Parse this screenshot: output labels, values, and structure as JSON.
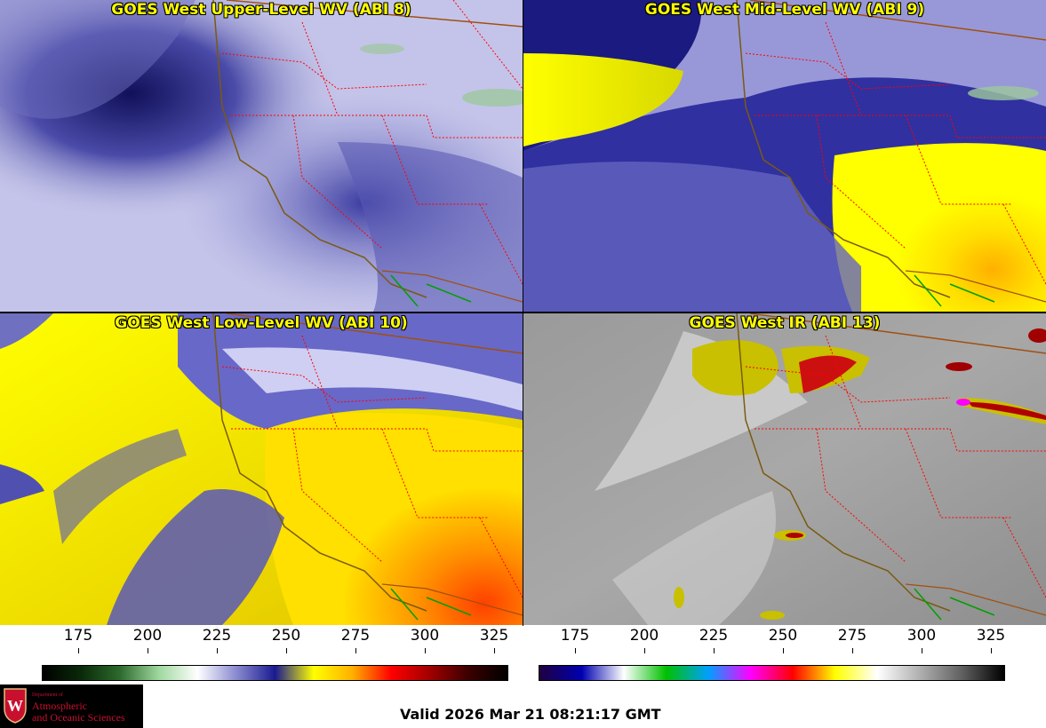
{
  "panels": [
    {
      "id": "p1",
      "title": "GOES West Upper-Level WV (ABI 8)",
      "palette": "upper"
    },
    {
      "id": "p2",
      "title": "GOES West Mid-Level WV (ABI 9)",
      "palette": "mid"
    },
    {
      "id": "p3",
      "title": "GOES West Low-Level WV (ABI 10)",
      "palette": "low"
    },
    {
      "id": "p4",
      "title": "GOES West IR (ABI 13)",
      "palette": "ir"
    }
  ],
  "colorbars": [
    {
      "name": "wv-colorbar",
      "ticks": [
        "175",
        "200",
        "225",
        "250",
        "275",
        "300",
        "325"
      ],
      "stops": [
        "#000000",
        "#0a2a0a",
        "#2d6b2d",
        "#9fd89f",
        "#ffffff",
        "#8a8ad0",
        "#1a1a90",
        "#ffff00",
        "#ffb000",
        "#ff0000",
        "#a00000",
        "#3a0000",
        "#000000"
      ]
    },
    {
      "name": "ir-colorbar",
      "ticks": [
        "175",
        "200",
        "225",
        "250",
        "275",
        "300",
        "325"
      ],
      "stops": [
        "#200040",
        "#0000b0",
        "#ffffff",
        "#00c000",
        "#00a0ff",
        "#ff00ff",
        "#ff0000",
        "#ffff00",
        "#ffffff",
        "#b0b0b0",
        "#606060",
        "#000000"
      ]
    }
  ],
  "logo": {
    "line1": "Department of",
    "line2": "Atmospheric",
    "line3": "and Oceanic Sciences",
    "mark": "W"
  },
  "valid_time": "Valid 2026 Mar 21 08:21:17 GMT",
  "colors": {
    "title": "#ffff00",
    "state_border": "#ff0000",
    "coast": "#7a5a10",
    "mexico_border": "#00a000"
  }
}
